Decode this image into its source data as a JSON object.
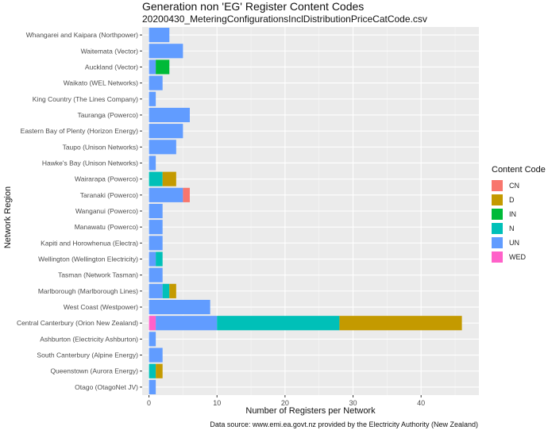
{
  "chart_data": {
    "type": "bar",
    "orientation": "horizontal",
    "stacked": true,
    "title": "Generation non 'EG' Register Content Codes",
    "subtitle": "20200430_MeteringConfigurationsInclDistributionPriceCatCode.csv",
    "xlabel": "Number of Registers per Network",
    "ylabel": "Network Region",
    "caption": "Data source: www.emi.ea.govt.nz provided by the Electricity Authority (New Zealand)",
    "xlim": [
      -1,
      48.5
    ],
    "xticks": [
      0,
      10,
      20,
      30,
      40
    ],
    "grid": true,
    "legend_title": "Content Code",
    "legend_position": "right",
    "colors": {
      "CN": "#F8766D",
      "D": "#C49A00",
      "IN": "#00BA38",
      "N": "#00C0B8",
      "UN": "#619CFF",
      "WED": "#FF61C9"
    },
    "categories": [
      "Whangarei and Kaipara (Northpower)",
      "Waitemata (Vector)",
      "Auckland (Vector)",
      "Waikato (WEL Networks)",
      "King Country (The Lines Company)",
      "Tauranga (Powerco)",
      "Eastern Bay of Plenty (Horizon Energy)",
      "Taupo (Unison Networks)",
      "Hawke's Bay (Unison Networks)",
      "Wairarapa (Powerco)",
      "Taranaki (Powerco)",
      "Wanganui (Powerco)",
      "Manawatu (Powerco)",
      "Kapiti and Horowhenua (Electra)",
      "Wellington (Wellington Electricity)",
      "Tasman (Network Tasman)",
      "Marlborough (Marlborough Lines)",
      "West Coast (Westpower)",
      "Central Canterbury (Orion New Zealand)",
      "Ashburton (Electricity Ashburton)",
      "South Canterbury (Alpine Energy)",
      "Queenstown (Aurora Energy)",
      "Otago (OtagoNet JV)"
    ],
    "stack_order": [
      "WED",
      "UN",
      "N",
      "IN",
      "D",
      "CN"
    ],
    "series": [
      {
        "name": "CN",
        "values": [
          0,
          0,
          0,
          0,
          0,
          0,
          0,
          0,
          0,
          0,
          1,
          0,
          0,
          0,
          0,
          0,
          0,
          0,
          0,
          0,
          0,
          0,
          0
        ]
      },
      {
        "name": "D",
        "values": [
          0,
          0,
          0,
          0,
          0,
          0,
          0,
          0,
          0,
          2,
          0,
          0,
          0,
          0,
          0,
          0,
          1,
          0,
          18,
          0,
          0,
          1,
          0
        ]
      },
      {
        "name": "IN",
        "values": [
          0,
          0,
          2,
          0,
          0,
          0,
          0,
          0,
          0,
          0,
          0,
          0,
          0,
          0,
          0,
          0,
          0,
          0,
          0,
          0,
          0,
          0,
          0
        ]
      },
      {
        "name": "N",
        "values": [
          0,
          0,
          0,
          0,
          0,
          0,
          0,
          0,
          0,
          2,
          0,
          0,
          0,
          0,
          1,
          0,
          1,
          0,
          18,
          0,
          0,
          1,
          0
        ]
      },
      {
        "name": "UN",
        "values": [
          3,
          5,
          1,
          2,
          1,
          6,
          5,
          4,
          1,
          0,
          5,
          2,
          2,
          2,
          1,
          2,
          2,
          9,
          9,
          1,
          2,
          0,
          1
        ]
      },
      {
        "name": "WED",
        "values": [
          0,
          0,
          0,
          0,
          0,
          0,
          0,
          0,
          0,
          0,
          0,
          0,
          0,
          0,
          0,
          0,
          0,
          0,
          1,
          0,
          0,
          0,
          0
        ]
      }
    ]
  }
}
